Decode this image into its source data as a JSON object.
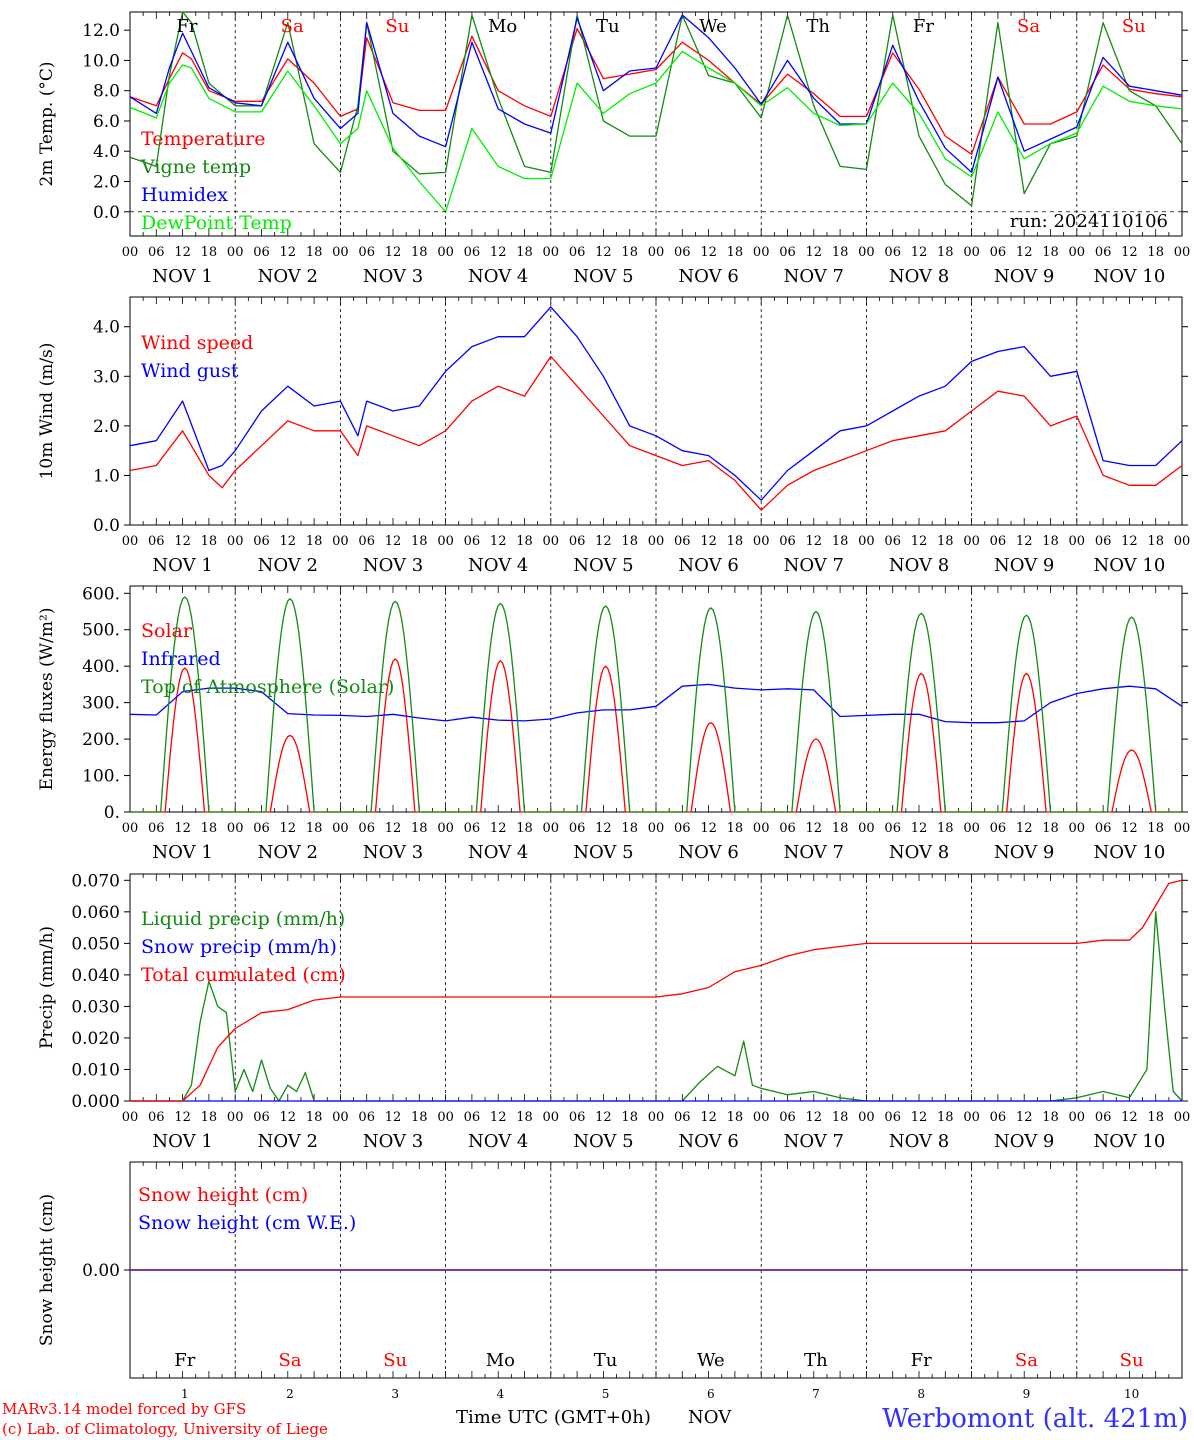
{
  "footer": {
    "model": "MARv3.14 model forced by GFS",
    "credit": "(c) Lab. of Climatology, University of Liege",
    "xlabel": "Time UTC (GMT+0h)",
    "month": "NOV",
    "station": "Werbomont (alt. 421m)"
  },
  "run_label": "run: 2024110106",
  "days": {
    "names": [
      "Fr",
      "Sa",
      "Su",
      "Mo",
      "Tu",
      "We",
      "Th",
      "Fr",
      "Sa",
      "Su"
    ],
    "weekend": [
      false,
      true,
      true,
      false,
      false,
      false,
      false,
      false,
      true,
      true
    ],
    "date_labels": [
      "NOV  1",
      "NOV  2",
      "NOV  3",
      "NOV  4",
      "NOV  5",
      "NOV  6",
      "NOV  7",
      "NOV  8",
      "NOV  9",
      "NOV 10"
    ],
    "date_numbers": [
      "1",
      "2",
      "3",
      "4",
      "5",
      "6",
      "7",
      "8",
      "9",
      "10"
    ],
    "hour_ticks": [
      "00",
      "06",
      "12",
      "18"
    ],
    "last_tick": "00"
  },
  "colors": {
    "red": "#ff0000",
    "green": "#138a13",
    "blue": "#0000ff",
    "lightgreen": "#00ee00",
    "purple": "#7a2fa0",
    "weekend": "#ff0000",
    "weekday": "#000000"
  },
  "chart_data": [
    {
      "type": "line",
      "ylabel": "2m Temp. (°C)",
      "ylim": [
        -1.6,
        13.2
      ],
      "yticks": [
        "0.0",
        "2.0",
        "4.0",
        "6.0",
        "8.0",
        "10.0",
        "12.0"
      ],
      "ytick_values": [
        0,
        2,
        4,
        6,
        8,
        10,
        12
      ],
      "x_unit": "hours since 2024-11-01 00 UTC",
      "series": [
        {
          "name": "Temperature",
          "color": "red",
          "x": [
            0,
            6,
            9,
            12,
            14,
            18,
            24,
            30,
            36,
            42,
            48,
            52,
            54,
            60,
            66,
            72,
            78,
            84,
            90,
            96,
            102,
            108,
            114,
            120,
            126,
            132,
            138,
            144,
            150,
            156,
            162,
            168,
            174,
            180,
            186,
            192,
            198,
            204,
            210,
            216,
            222,
            228,
            234,
            240
          ],
          "y": [
            7.6,
            7.0,
            8.8,
            10.5,
            10.1,
            8.0,
            7.3,
            7.3,
            10.1,
            8.5,
            6.3,
            6.8,
            11.5,
            7.2,
            6.7,
            6.7,
            11.6,
            8.0,
            7.0,
            6.3,
            12.1,
            8.8,
            9.1,
            9.4,
            11.2,
            10.0,
            8.5,
            7.1,
            9.1,
            7.8,
            6.3,
            6.3,
            10.5,
            8.1,
            5.0,
            3.8,
            8.9,
            5.8,
            5.8,
            6.6,
            9.7,
            8.1,
            7.8,
            7.6
          ]
        },
        {
          "name": "Vigne temp",
          "color": "green",
          "x": [
            0,
            6,
            9,
            12,
            14,
            18,
            24,
            30,
            36,
            42,
            48,
            52,
            54,
            60,
            66,
            72,
            78,
            84,
            90,
            96,
            102,
            108,
            114,
            120,
            126,
            132,
            138,
            144,
            150,
            156,
            162,
            168,
            174,
            180,
            186,
            192,
            198,
            204,
            210,
            216,
            222,
            228,
            234,
            240
          ],
          "y": [
            3.6,
            3.0,
            9.0,
            13.2,
            12.5,
            8.5,
            7.0,
            7.0,
            12.5,
            4.5,
            2.6,
            7.0,
            12.5,
            4.0,
            2.5,
            2.6,
            13.0,
            7.5,
            3.0,
            2.6,
            13.0,
            6.0,
            5.0,
            5.0,
            13.0,
            9.0,
            8.5,
            6.2,
            13.0,
            7.0,
            3.0,
            2.8,
            13.0,
            5.0,
            1.8,
            0.4,
            12.5,
            1.2,
            4.5,
            5.0,
            12.5,
            8.0,
            7.0,
            4.5
          ]
        },
        {
          "name": "Humidex",
          "color": "blue",
          "x": [
            0,
            6,
            9,
            12,
            14,
            18,
            24,
            30,
            36,
            42,
            48,
            52,
            54,
            60,
            66,
            72,
            78,
            84,
            90,
            96,
            102,
            108,
            114,
            120,
            126,
            132,
            138,
            144,
            150,
            156,
            162,
            168,
            174,
            180,
            186,
            192,
            198,
            204,
            210,
            216,
            222,
            228,
            234,
            240
          ],
          "y": [
            7.6,
            6.5,
            9.5,
            11.8,
            10.6,
            8.2,
            7.2,
            7.0,
            11.2,
            7.5,
            5.5,
            6.5,
            12.5,
            6.5,
            5.0,
            4.3,
            11.2,
            6.8,
            5.8,
            5.2,
            12.8,
            8.0,
            9.3,
            9.5,
            13.0,
            11.5,
            9.5,
            7.1,
            10.0,
            7.5,
            5.8,
            5.8,
            11.0,
            7.3,
            4.2,
            2.6,
            8.9,
            4.0,
            4.8,
            5.6,
            10.2,
            8.3,
            8.0,
            7.7
          ]
        },
        {
          "name": "DewPoint Temp",
          "color": "lightgreen",
          "x": [
            0,
            6,
            9,
            12,
            14,
            18,
            24,
            30,
            36,
            42,
            48,
            52,
            54,
            60,
            66,
            72,
            78,
            84,
            90,
            96,
            102,
            108,
            114,
            120,
            126,
            132,
            138,
            144,
            150,
            156,
            162,
            168,
            174,
            180,
            186,
            192,
            198,
            204,
            210,
            216,
            222,
            228,
            234,
            240
          ],
          "y": [
            6.9,
            6.2,
            8.5,
            9.7,
            9.5,
            7.5,
            6.6,
            6.6,
            9.3,
            7.0,
            4.5,
            5.5,
            8.0,
            4.2,
            2.0,
            0.0,
            5.5,
            3.0,
            2.2,
            2.2,
            8.5,
            6.5,
            7.8,
            8.5,
            10.6,
            9.5,
            8.5,
            7.0,
            8.2,
            6.5,
            5.7,
            5.8,
            8.5,
            6.5,
            3.5,
            2.3,
            6.6,
            3.5,
            4.5,
            5.2,
            8.3,
            7.3,
            7.0,
            6.8
          ]
        }
      ]
    },
    {
      "type": "line",
      "ylabel": "10m Wind (m/s)",
      "ylim": [
        0.0,
        4.6
      ],
      "yticks": [
        "0.0",
        "1.0",
        "2.0",
        "3.0",
        "4.0"
      ],
      "ytick_values": [
        0,
        1,
        2,
        3,
        4
      ],
      "x_unit": "hours since 2024-11-01 00 UTC",
      "series": [
        {
          "name": "Wind speed",
          "color": "red",
          "x": [
            0,
            6,
            12,
            18,
            21,
            24,
            30,
            36,
            42,
            48,
            52,
            54,
            60,
            66,
            72,
            78,
            84,
            90,
            96,
            102,
            108,
            114,
            120,
            126,
            132,
            138,
            144,
            150,
            156,
            162,
            168,
            174,
            180,
            186,
            192,
            198,
            204,
            210,
            216,
            222,
            228,
            234,
            240
          ],
          "y": [
            1.1,
            1.2,
            1.9,
            1.0,
            0.75,
            1.1,
            1.6,
            2.1,
            1.9,
            1.9,
            1.4,
            2.0,
            1.8,
            1.6,
            1.9,
            2.5,
            2.8,
            2.6,
            3.4,
            2.8,
            2.2,
            1.6,
            1.4,
            1.2,
            1.3,
            0.9,
            0.3,
            0.8,
            1.1,
            1.3,
            1.5,
            1.7,
            1.8,
            1.9,
            2.3,
            2.7,
            2.6,
            2.0,
            2.2,
            1.0,
            0.8,
            0.8,
            1.2
          ]
        },
        {
          "name": "Wind gust",
          "color": "blue",
          "x": [
            0,
            6,
            12,
            18,
            21,
            24,
            30,
            36,
            42,
            48,
            52,
            54,
            60,
            66,
            72,
            78,
            84,
            90,
            96,
            102,
            108,
            114,
            120,
            126,
            132,
            138,
            144,
            150,
            156,
            162,
            168,
            174,
            180,
            186,
            192,
            198,
            204,
            210,
            216,
            222,
            228,
            234,
            240
          ],
          "y": [
            1.6,
            1.7,
            2.5,
            1.1,
            1.2,
            1.5,
            2.3,
            2.8,
            2.4,
            2.5,
            1.8,
            2.5,
            2.3,
            2.4,
            3.1,
            3.6,
            3.8,
            3.8,
            4.4,
            3.8,
            3.0,
            2.0,
            1.8,
            1.5,
            1.4,
            1.0,
            0.5,
            1.1,
            1.5,
            1.9,
            2.0,
            2.3,
            2.6,
            2.8,
            3.3,
            3.5,
            3.6,
            3.0,
            3.1,
            1.3,
            1.2,
            1.2,
            1.7
          ]
        }
      ]
    },
    {
      "type": "line",
      "ylabel": "Energy fluxes (W/m²)",
      "ylim": [
        0,
        620
      ],
      "yticks": [
        "0.",
        "100.",
        "200.",
        "300.",
        "400.",
        "500.",
        "600."
      ],
      "ytick_values": [
        0,
        100,
        200,
        300,
        400,
        500,
        600
      ],
      "x_unit": "hours since 2024-11-01 00 UTC",
      "diurnal": {
        "solar_peak": [
          395,
          210,
          420,
          415,
          400,
          245,
          200,
          380,
          380,
          170
        ],
        "toa_peak": [
          590,
          585,
          578,
          572,
          565,
          560,
          550,
          545,
          540,
          535
        ]
      },
      "series": [
        {
          "name": "Solar",
          "color": "red"
        },
        {
          "name": "Infrared",
          "color": "blue",
          "x": [
            0,
            6,
            12,
            18,
            24,
            30,
            36,
            42,
            48,
            54,
            60,
            66,
            72,
            78,
            84,
            90,
            96,
            102,
            108,
            114,
            120,
            126,
            132,
            138,
            144,
            150,
            156,
            162,
            168,
            174,
            180,
            186,
            192,
            198,
            204,
            210,
            216,
            222,
            228,
            234,
            240
          ],
          "y": [
            268,
            266,
            330,
            340,
            340,
            330,
            270,
            266,
            265,
            262,
            268,
            258,
            250,
            260,
            252,
            250,
            255,
            272,
            280,
            280,
            290,
            345,
            350,
            340,
            335,
            338,
            335,
            262,
            265,
            268,
            268,
            248,
            245,
            245,
            250,
            300,
            325,
            338,
            345,
            338,
            290
          ]
        },
        {
          "name": "Top of Atmosphere (Solar)",
          "color": "green"
        }
      ]
    },
    {
      "type": "line",
      "ylabel": "Precip (mm/h)",
      "ylim": [
        0.0,
        0.072
      ],
      "yticks": [
        "0.000",
        "0.010",
        "0.020",
        "0.030",
        "0.040",
        "0.050",
        "0.060",
        "0.070"
      ],
      "ytick_values": [
        0,
        0.01,
        0.02,
        0.03,
        0.04,
        0.05,
        0.06,
        0.07
      ],
      "x_unit": "hours since 2024-11-01 00 UTC",
      "series": [
        {
          "name": "Liquid precip (mm/h)",
          "color": "green",
          "x": [
            0,
            12,
            14,
            16,
            18,
            20,
            22,
            24,
            26,
            28,
            30,
            32,
            34,
            36,
            38,
            40,
            42,
            44,
            46,
            120,
            126,
            130,
            134,
            138,
            140,
            142,
            144,
            150,
            156,
            162,
            168,
            174,
            180,
            210,
            216,
            222,
            228,
            232,
            234,
            236,
            238,
            240
          ],
          "y": [
            0,
            0,
            0.005,
            0.025,
            0.038,
            0.03,
            0.028,
            0.003,
            0.01,
            0.003,
            0.013,
            0.004,
            0.0,
            0.005,
            0.003,
            0.009,
            0.0,
            0.0,
            0.0,
            0,
            0.0,
            0.006,
            0.011,
            0.008,
            0.019,
            0.005,
            0.004,
            0.002,
            0.003,
            0.001,
            0.0,
            0.0,
            0.0,
            0.0,
            0.001,
            0.003,
            0.001,
            0.01,
            0.06,
            0.03,
            0.003,
            0.0
          ]
        },
        {
          "name": "Snow precip (mm/h)",
          "color": "blue",
          "x": [
            0,
            240
          ],
          "y": [
            0,
            0
          ]
        },
        {
          "name": "Total cumulated (cm)",
          "color": "red",
          "x": [
            0,
            12,
            16,
            20,
            24,
            30,
            36,
            42,
            48,
            120,
            126,
            132,
            138,
            144,
            150,
            156,
            162,
            168,
            174,
            180,
            186,
            192,
            198,
            204,
            210,
            216,
            222,
            228,
            231,
            234,
            237,
            240
          ],
          "y": [
            0,
            0,
            0.005,
            0.017,
            0.023,
            0.028,
            0.029,
            0.032,
            0.033,
            0.033,
            0.034,
            0.036,
            0.041,
            0.043,
            0.046,
            0.048,
            0.049,
            0.05,
            0.05,
            0.05,
            0.05,
            0.05,
            0.05,
            0.05,
            0.05,
            0.05,
            0.051,
            0.051,
            0.055,
            0.062,
            0.069,
            0.07
          ]
        }
      ]
    },
    {
      "type": "line",
      "ylabel": "Snow height (cm)",
      "ylim": [
        -1,
        1
      ],
      "yticks": [
        "0.00"
      ],
      "ytick_values": [
        0
      ],
      "x_unit": "hours since 2024-11-01 00 UTC",
      "series": [
        {
          "name": "Snow height (cm)",
          "color": "red",
          "x": [
            0,
            240
          ],
          "y": [
            0,
            0
          ]
        },
        {
          "name": "Snow height (cm W.E.)",
          "color": "blue",
          "x": [
            0,
            240
          ],
          "y": [
            0,
            0
          ]
        }
      ]
    }
  ]
}
